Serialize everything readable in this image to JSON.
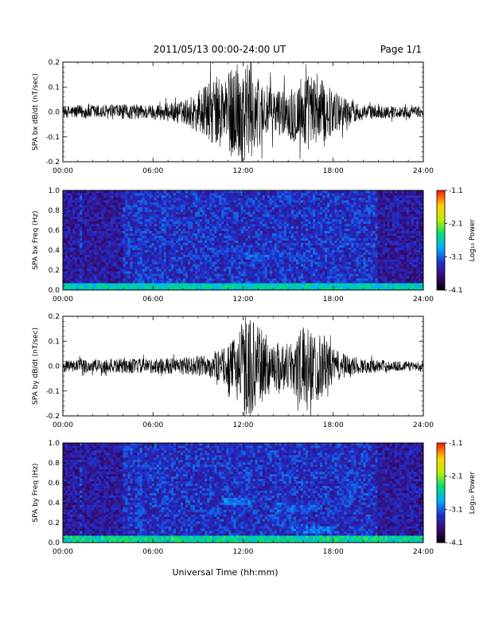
{
  "header": {
    "title": "2011/05/13  00:00-24:00 UT",
    "page": "Page 1/1"
  },
  "footer": {
    "xlabel": "Universal Time (hh:mm)"
  },
  "colorbar": {
    "label": "Log₁₀ Power",
    "ticks": [
      "-1.1",
      "-2.1",
      "-3.1",
      "-4.1"
    ],
    "range": [
      -4.1,
      -1.1
    ],
    "colormap": [
      "#000000",
      "#3a0a6e",
      "#2030d0",
      "#00b0ff",
      "#00e070",
      "#c0f000",
      "#ffd000",
      "#ff2000"
    ]
  },
  "chart_data": [
    {
      "type": "line",
      "ylabel": "SPA bx dB/dt (nT/sec)",
      "xlim": [
        0,
        24
      ],
      "ylim": [
        -0.2,
        0.2
      ],
      "xticks": [
        "00:00",
        "06:00",
        "12:00",
        "18:00",
        "24:00"
      ],
      "yticks": [
        "0.2",
        "0.1",
        "0.0",
        "-0.1",
        "-0.2"
      ],
      "envelope": {
        "hours": [
          0,
          2,
          4,
          6,
          8,
          9,
          10,
          11,
          11.5,
          12,
          12.5,
          13,
          14,
          15,
          16,
          17,
          18,
          19,
          20,
          22,
          24
        ],
        "amplitude": [
          0.025,
          0.03,
          0.03,
          0.03,
          0.045,
          0.08,
          0.14,
          0.16,
          0.2,
          0.2,
          0.2,
          0.14,
          0.09,
          0.1,
          0.16,
          0.14,
          0.09,
          0.05,
          0.03,
          0.025,
          0.02
        ]
      }
    },
    {
      "type": "heatmap",
      "ylabel": "SPA bx Freq (Hz)",
      "xlim": [
        0,
        24
      ],
      "ylim": [
        0,
        1
      ],
      "xticks": [
        "00:00",
        "06:00",
        "12:00",
        "18:00",
        "24:00"
      ],
      "yticks": [
        "1.0",
        "0.8",
        "0.6",
        "0.4",
        "0.2",
        "0.0"
      ],
      "zlim": [
        -4.1,
        -1.1
      ],
      "features": [
        {
          "name": "low-frequency band",
          "hours": [
            0,
            24
          ],
          "freq": [
            0,
            0.06
          ],
          "level": -2.6
        },
        {
          "name": "emission",
          "hours": [
            12,
            14.5
          ],
          "freq": [
            0.3,
            0.38
          ],
          "level": -3.2
        },
        {
          "name": "emission",
          "hours": [
            15,
            17
          ],
          "freq": [
            0.28,
            0.35
          ],
          "level": -3.3
        },
        {
          "name": "emission",
          "hours": [
            18.5,
            19.5
          ],
          "freq": [
            0.45,
            0.52
          ],
          "level": -3.2
        },
        {
          "name": "emission",
          "hours": [
            10,
            12
          ],
          "freq": [
            0.35,
            0.42
          ],
          "level": -3.3
        }
      ]
    },
    {
      "type": "line",
      "ylabel": "SPA by dB/dt (nT/sec)",
      "xlim": [
        0,
        24
      ],
      "ylim": [
        -0.2,
        0.2
      ],
      "xticks": [
        "00:00",
        "06:00",
        "12:00",
        "18:00",
        "24:00"
      ],
      "yticks": [
        "0.2",
        "0.1",
        "0.0",
        "-0.1",
        "-0.2"
      ],
      "envelope": {
        "hours": [
          0,
          2,
          4,
          6,
          8,
          9,
          10,
          11,
          11.5,
          12,
          12.5,
          13,
          14,
          15,
          16,
          17,
          18,
          19,
          20,
          22,
          24
        ],
        "amplitude": [
          0.025,
          0.03,
          0.03,
          0.03,
          0.035,
          0.04,
          0.05,
          0.08,
          0.12,
          0.2,
          0.2,
          0.16,
          0.1,
          0.1,
          0.16,
          0.14,
          0.07,
          0.04,
          0.03,
          0.02,
          0.02
        ]
      }
    },
    {
      "type": "heatmap",
      "ylabel": "SPA by Freq (Hz)",
      "xlim": [
        0,
        24
      ],
      "ylim": [
        0,
        1
      ],
      "xticks": [
        "00:00",
        "06:00",
        "12:00",
        "18:00",
        "24:00"
      ],
      "yticks": [
        "1.0",
        "0.8",
        "0.6",
        "0.4",
        "0.2",
        "0.0"
      ],
      "zlim": [
        -4.1,
        -1.1
      ],
      "features": [
        {
          "name": "low-frequency band",
          "hours": [
            0,
            24
          ],
          "freq": [
            0,
            0.07
          ],
          "level": -2.5
        },
        {
          "name": "emission",
          "hours": [
            10.5,
            12.5
          ],
          "freq": [
            0.38,
            0.45
          ],
          "level": -3.1
        },
        {
          "name": "emission",
          "hours": [
            14,
            17
          ],
          "freq": [
            0.32,
            0.4
          ],
          "level": -3.2
        },
        {
          "name": "emission",
          "hours": [
            18.5,
            19.5
          ],
          "freq": [
            0.4,
            0.65
          ],
          "level": -3.3
        },
        {
          "name": "emission",
          "hours": [
            15,
            18
          ],
          "freq": [
            0.1,
            0.16
          ],
          "level": -3.1
        }
      ]
    }
  ]
}
